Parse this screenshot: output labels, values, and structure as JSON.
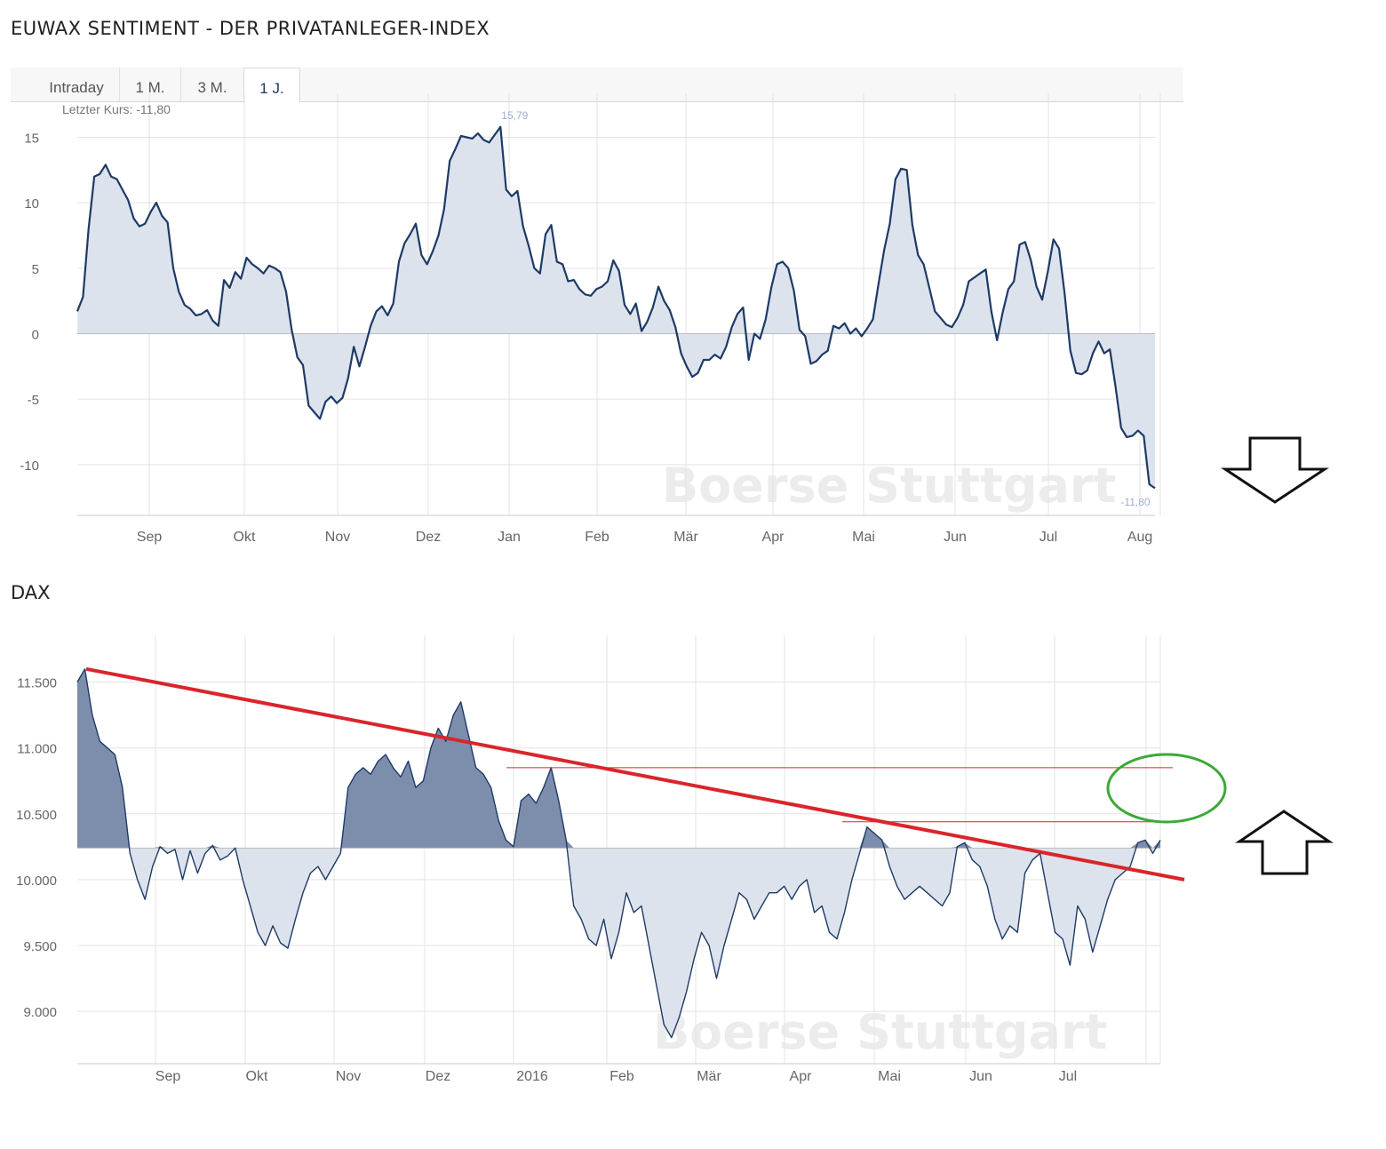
{
  "chart1_title": "EUWAX SENTIMENT - DER PRIVATANLEGER-INDEX",
  "chart2_title": "DAX",
  "tabs": [
    {
      "label": "Intraday",
      "active": false
    },
    {
      "label": "1 M.",
      "active": false
    },
    {
      "label": "3 M.",
      "active": false
    },
    {
      "label": "1 J.",
      "active": true
    }
  ],
  "colors": {
    "line": "#1d3a66",
    "area_light": "#dde3ec",
    "area_dark": "#7d8ead",
    "grid": "#e3e3e3",
    "trend": "#d9252b",
    "highlight": "#3aaa35",
    "watermark": "#ececec"
  },
  "watermark": "Boerse Stuttgart",
  "icons": [
    "down-arrow-icon",
    "up-arrow-icon",
    "highlight-ellipse"
  ],
  "chart_data": [
    {
      "type": "area",
      "title": "EUWAX SENTIMENT - DER PRIVATANLEGER-INDEX",
      "last_price_label": "Letzter Kurs: -11,80",
      "max_label": "15,79",
      "last_label": "-11,80",
      "baseline": 0,
      "ylim": [
        -13.2,
        17
      ],
      "y_ticks": [
        15,
        10,
        5,
        0,
        -5,
        -10
      ],
      "y_tick_labels": [
        "15",
        "10",
        "5",
        "0",
        "-5",
        "-10"
      ],
      "x_labels": [
        "Sep",
        "Okt",
        "Nov",
        "Dez",
        "Jan",
        "Feb",
        "Mär",
        "Apr",
        "Mai",
        "Jun",
        "Jul",
        "Aug"
      ],
      "values": [
        1.7,
        2.8,
        8.0,
        12.0,
        12.2,
        12.9,
        12.0,
        11.8,
        11.0,
        10.2,
        8.8,
        8.2,
        8.4,
        9.3,
        10.0,
        9.0,
        8.5,
        5.0,
        3.2,
        2.2,
        1.9,
        1.4,
        1.5,
        1.8,
        1.0,
        0.6,
        4.1,
        3.5,
        4.7,
        4.2,
        5.8,
        5.3,
        5.0,
        4.6,
        5.2,
        5.0,
        4.7,
        3.2,
        0.3,
        -1.8,
        -2.4,
        -5.5,
        -6.0,
        -6.5,
        -5.2,
        -4.8,
        -5.3,
        -4.9,
        -3.4,
        -1.0,
        -2.5,
        -1.0,
        0.6,
        1.7,
        2.1,
        1.4,
        2.3,
        5.5,
        6.9,
        7.6,
        8.4,
        6.0,
        5.3,
        6.3,
        7.5,
        9.5,
        13.2,
        14.1,
        15.1,
        15.0,
        14.9,
        15.3,
        14.8,
        14.6,
        15.2,
        15.79,
        11.0,
        10.5,
        10.9,
        8.2,
        6.7,
        5.0,
        4.6,
        7.6,
        8.3,
        5.5,
        5.3,
        4.0,
        4.1,
        3.4,
        3.0,
        2.9,
        3.4,
        3.6,
        4.0,
        5.6,
        4.8,
        2.2,
        1.5,
        2.3,
        0.2,
        0.9,
        2.0,
        3.6,
        2.5,
        1.8,
        0.5,
        -1.5,
        -2.5,
        -3.3,
        -3.0,
        -2.0,
        -2.0,
        -1.6,
        -1.9,
        -1.0,
        0.5,
        1.5,
        2.0,
        -2.0,
        0.0,
        -0.4,
        1.1,
        3.5,
        5.3,
        5.5,
        5.0,
        3.3,
        0.3,
        -0.2,
        -2.3,
        -2.1,
        -1.6,
        -1.3,
        0.6,
        0.4,
        0.8,
        0.0,
        0.4,
        -0.2,
        0.4,
        1.1,
        3.8,
        6.4,
        8.4,
        11.8,
        12.6,
        12.5,
        8.3,
        6.0,
        5.3,
        3.5,
        1.7,
        1.2,
        0.7,
        0.5,
        1.2,
        2.2,
        4.0,
        4.3,
        4.6,
        4.9,
        1.7,
        -0.5,
        1.6,
        3.4,
        4.0,
        6.8,
        7.0,
        5.6,
        3.6,
        2.6,
        4.7,
        7.2,
        6.5,
        3.0,
        -1.3,
        -3.0,
        -3.1,
        -2.8,
        -1.5,
        -0.6,
        -1.5,
        -1.2,
        -4.0,
        -7.2,
        -7.9,
        -7.8,
        -7.4,
        -7.8,
        -11.5,
        -11.8
      ],
      "dates_hint": "one-year daily series, Aug to Aug"
    },
    {
      "type": "area",
      "title": "DAX",
      "baseline": 10240,
      "ylim": [
        8670,
        11720
      ],
      "y_ticks": [
        11500,
        11000,
        10500,
        10000,
        9500,
        9000
      ],
      "y_tick_labels": [
        "11.500",
        "11.000",
        "10.500",
        "10.000",
        "9.500",
        "9.000"
      ],
      "x_labels": [
        "Sep",
        "Okt",
        "Nov",
        "Dez",
        "2016",
        "Feb",
        "Mär",
        "Apr",
        "Mai",
        "Jun",
        "Jul"
      ],
      "values": [
        11500,
        11600,
        11250,
        11050,
        11000,
        10950,
        10700,
        10200,
        10000,
        9850,
        10100,
        10250,
        10200,
        10230,
        10000,
        10220,
        10050,
        10200,
        10260,
        10150,
        10180,
        10240,
        10000,
        9800,
        9600,
        9500,
        9650,
        9520,
        9480,
        9700,
        9900,
        10050,
        10100,
        10000,
        10100,
        10200,
        10700,
        10800,
        10850,
        10800,
        10900,
        10950,
        10850,
        10780,
        10900,
        10700,
        10750,
        11000,
        11150,
        11050,
        11250,
        11350,
        11100,
        10850,
        10800,
        10700,
        10450,
        10300,
        10250,
        10600,
        10650,
        10580,
        10700,
        10850,
        10600,
        10300,
        9800,
        9700,
        9550,
        9500,
        9700,
        9400,
        9600,
        9900,
        9750,
        9800,
        9500,
        9200,
        8900,
        8800,
        8950,
        9150,
        9400,
        9600,
        9500,
        9250,
        9500,
        9700,
        9900,
        9850,
        9700,
        9800,
        9900,
        9900,
        9950,
        9850,
        9950,
        10000,
        9750,
        9800,
        9600,
        9550,
        9750,
        10000,
        10200,
        10400,
        10350,
        10300,
        10100,
        9950,
        9850,
        9900,
        9950,
        9900,
        9850,
        9800,
        9900,
        10250,
        10280,
        10150,
        10100,
        9950,
        9700,
        9550,
        9650,
        9600,
        10050,
        10150,
        10200,
        9900,
        9600,
        9550,
        9350,
        9800,
        9700,
        9450,
        9650,
        9850,
        10000,
        10050,
        10100,
        10280,
        10300,
        10200,
        10300
      ]
    }
  ]
}
